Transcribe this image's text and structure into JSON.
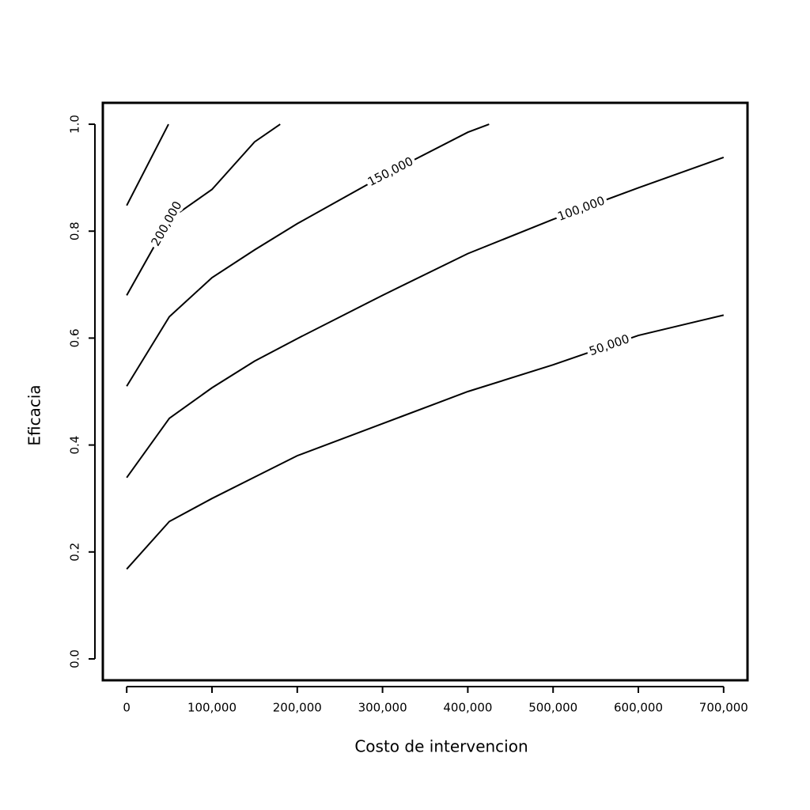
{
  "chart_data": {
    "type": "contour",
    "xlabel": "Costo de intervencion",
    "ylabel": "Eficacia",
    "xlim": [
      -28000,
      728000
    ],
    "ylim": [
      -0.04,
      1.04
    ],
    "xticks": [
      0,
      {
        "value": 100000,
        "label": "100,000"
      },
      {
        "value": 200000,
        "label": "200,000"
      },
      {
        "value": 300000,
        "label": "300,000"
      },
      {
        "value": 400000,
        "label": "400,000"
      },
      {
        "value": 500000,
        "label": "500,000"
      },
      {
        "value": 600000,
        "label": "600,000"
      },
      {
        "value": 700000,
        "label": "700,000"
      }
    ],
    "yticks": [
      {
        "value": 0,
        "label": "0.0"
      },
      0.2,
      0.4,
      0.6,
      0.8,
      {
        "value": 1,
        "label": "1.0"
      }
    ],
    "color": "#000000",
    "series": [
      {
        "name": "50,000",
        "x": [
          0,
          50000,
          100000,
          150000,
          200000,
          300000,
          400000,
          500000,
          600000,
          700000
        ],
        "y": [
          0.168,
          0.257,
          0.3,
          0.34,
          0.38,
          0.44,
          0.5,
          0.55,
          0.605,
          0.643
        ]
      },
      {
        "name": "100,000",
        "x": [
          0,
          50000,
          100000,
          150000,
          200000,
          300000,
          400000,
          500000,
          600000,
          700000
        ],
        "y": [
          0.339,
          0.45,
          0.507,
          0.557,
          0.599,
          0.68,
          0.758,
          0.822,
          0.881,
          0.938
        ]
      },
      {
        "name": "150,000",
        "x": [
          0,
          50000,
          100000,
          150000,
          200000,
          300000,
          400000,
          425000
        ],
        "y": [
          0.51,
          0.64,
          0.713,
          0.765,
          0.814,
          0.903,
          0.985,
          1.0
        ]
      },
      {
        "name": "200,000",
        "x": [
          0,
          50000,
          100000,
          150000,
          180000
        ],
        "y": [
          0.68,
          0.822,
          0.878,
          0.967,
          1.0
        ]
      },
      {
        "x": [
          0,
          49000
        ],
        "y": [
          0.848,
          1.0
        ]
      }
    ]
  }
}
